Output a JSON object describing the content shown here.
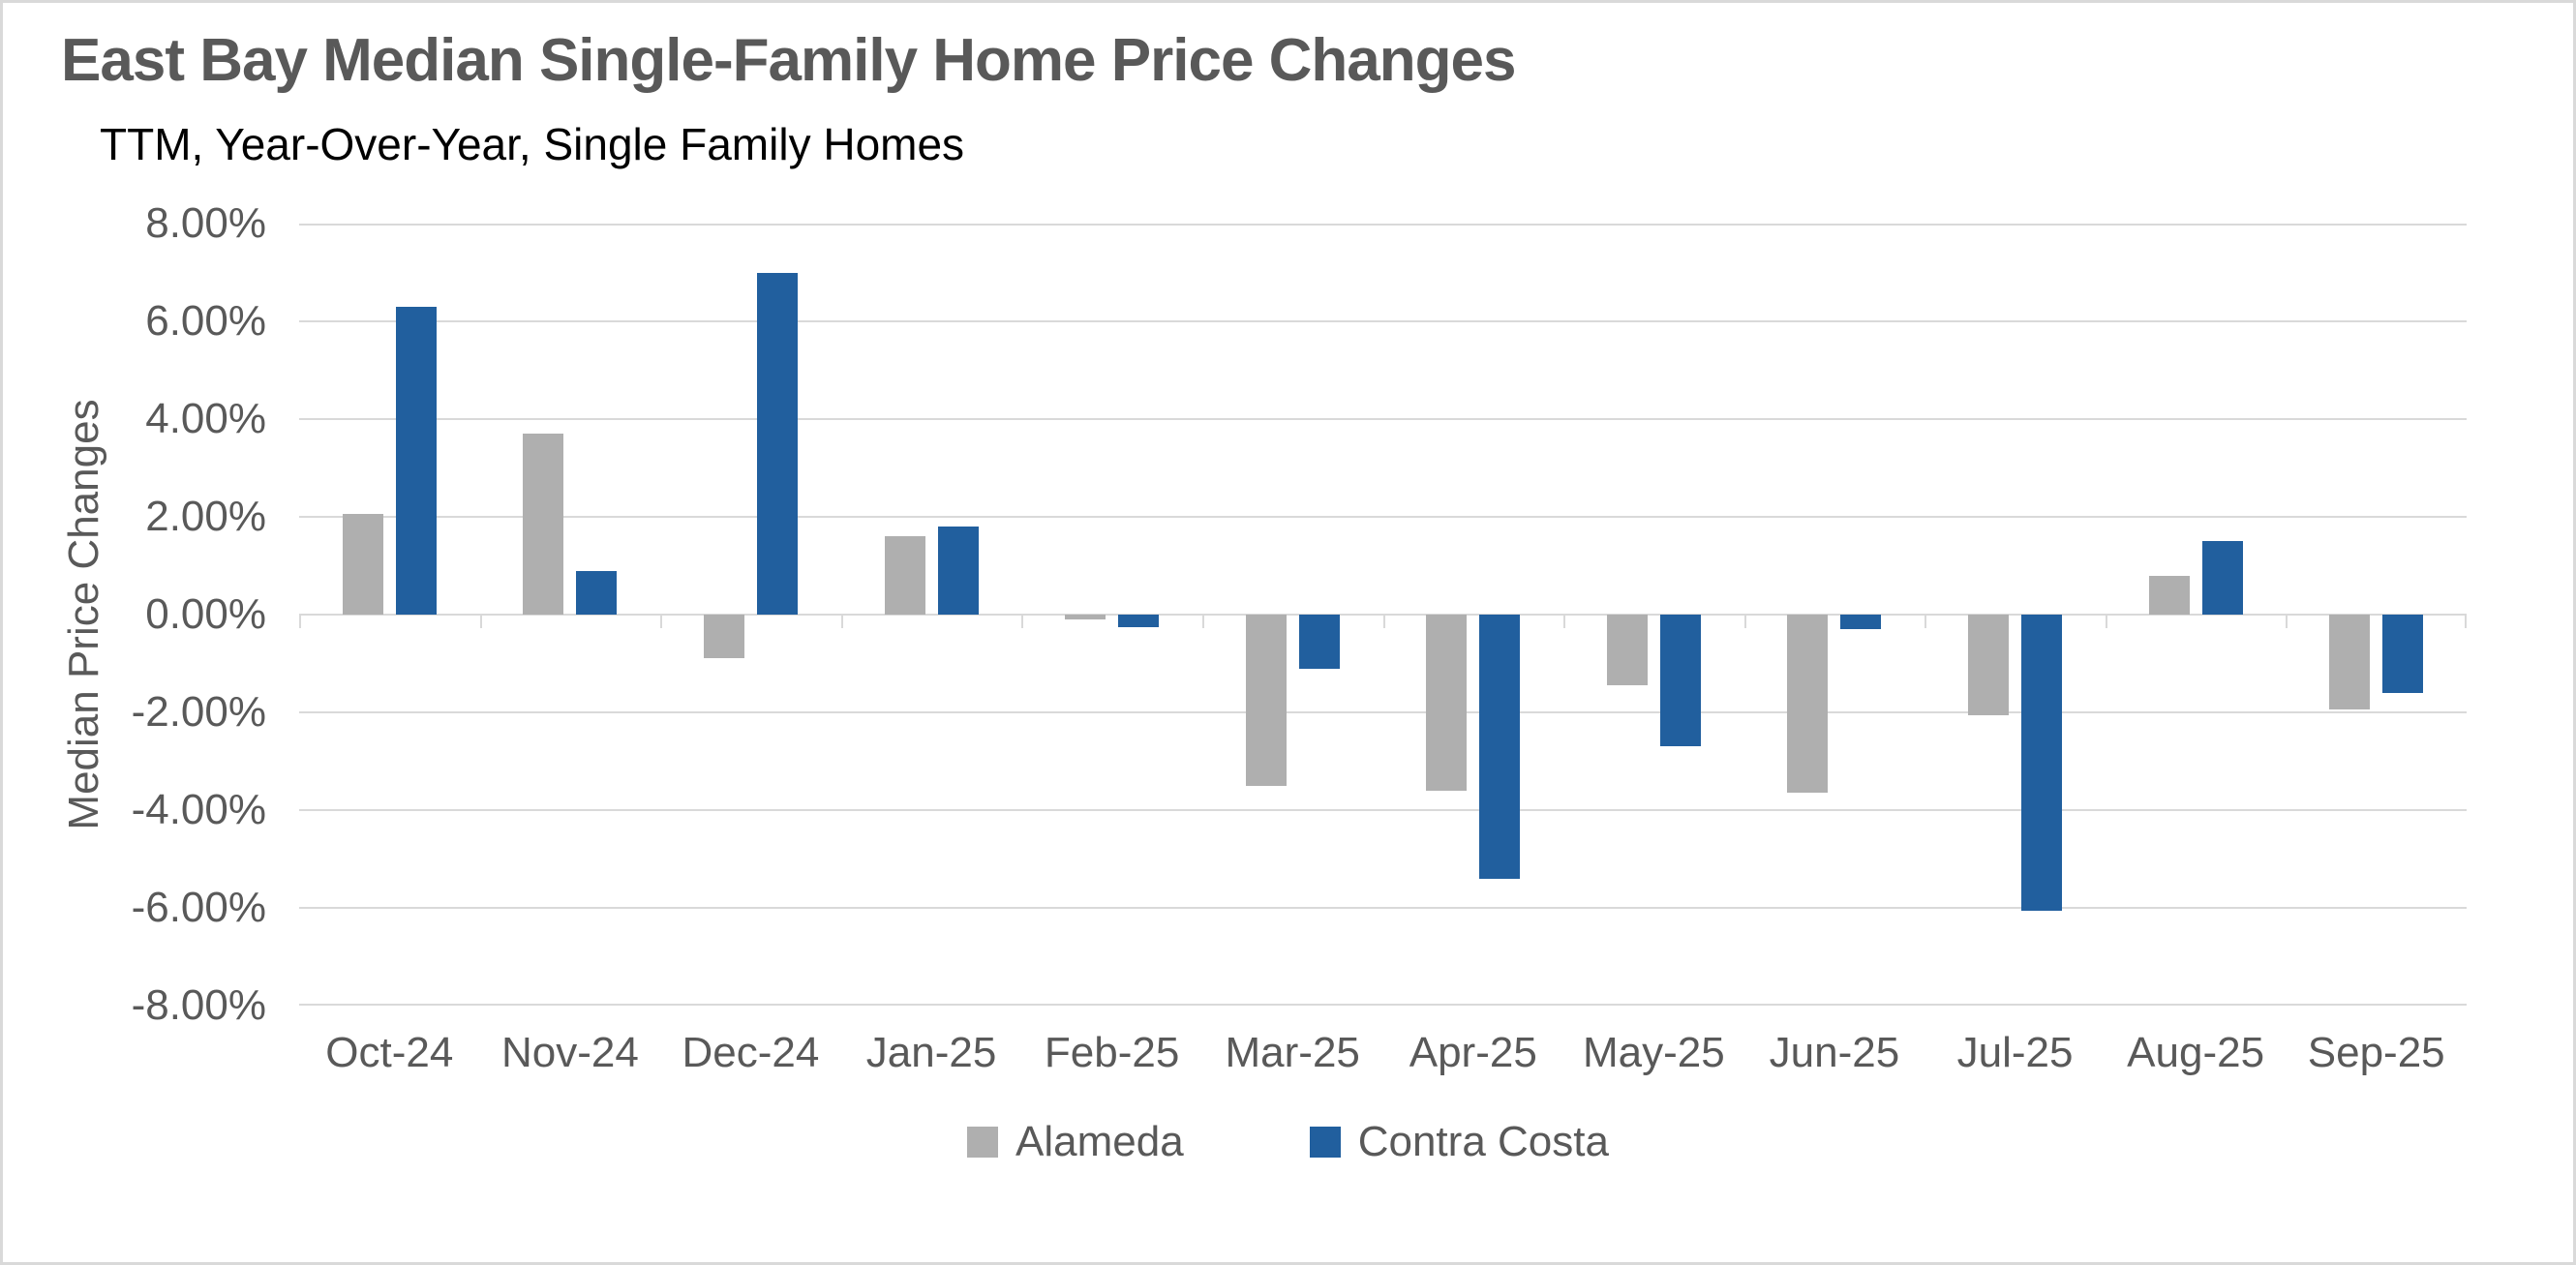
{
  "chart_data": {
    "type": "bar",
    "title": "East Bay Median Single-Family Home Price Changes",
    "subtitle": "TTM, Year-Over-Year, Single Family Homes",
    "ylabel": "Median Price Changes",
    "xlabel": "",
    "unit": "%",
    "categories": [
      "Oct-24",
      "Nov-24",
      "Dec-24",
      "Jan-25",
      "Feb-25",
      "Mar-25",
      "Apr-25",
      "May-25",
      "Jun-25",
      "Jul-25",
      "Aug-25",
      "Sep-25"
    ],
    "series": [
      {
        "name": "Alameda",
        "color": "#AFAFAF",
        "values": [
          2.05,
          3.7,
          -0.9,
          1.6,
          -0.1,
          -3.5,
          -3.6,
          -1.45,
          -3.65,
          -2.05,
          0.8,
          -1.95
        ]
      },
      {
        "name": "Contra Costa",
        "color": "#215F9E",
        "values": [
          6.3,
          0.9,
          7.0,
          1.8,
          -0.25,
          -1.1,
          -5.4,
          -2.7,
          -0.3,
          -6.05,
          1.5,
          -1.6
        ]
      }
    ],
    "ylim": [
      -8,
      8
    ],
    "ytick_step": 2,
    "ytick_labels": [
      "8.00%",
      "6.00%",
      "4.00%",
      "2.00%",
      "0.00%",
      "-2.00%",
      "-4.00%",
      "-6.00%",
      "-8.00%"
    ],
    "grid": true,
    "legend_position": "bottom"
  },
  "styles": {
    "grid_color": "#D9D9D9",
    "axis_color": "#D9D9D9",
    "text_color": "#595959",
    "subtitle_color": "#000000",
    "background": "#FFFFFF",
    "border_color": "#D9D9D9"
  }
}
